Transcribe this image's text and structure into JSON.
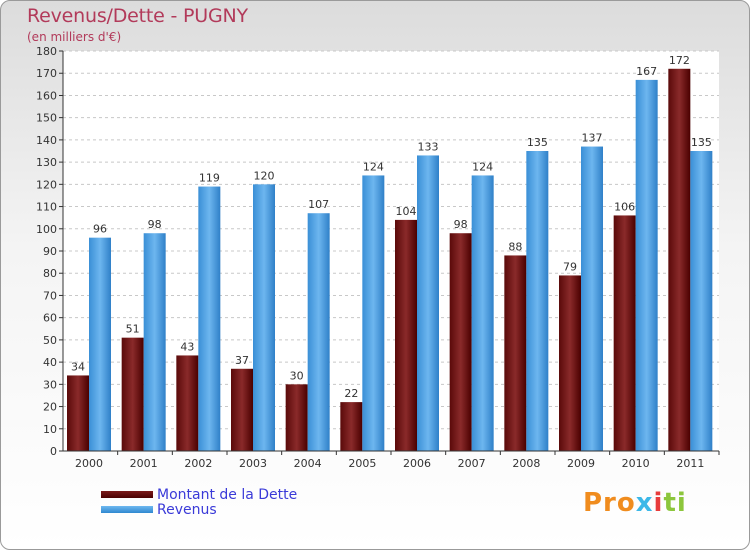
{
  "header": {
    "title": "Revenus/Dette - PUGNY",
    "subtitle": "(en milliers d'€)"
  },
  "legend": {
    "dette_label": "Montant de la Dette",
    "revenus_label": "Revenus"
  },
  "logo": {
    "text": "Proxiti",
    "parts": [
      "Pro",
      "x",
      "i",
      "ti"
    ]
  },
  "colors": {
    "dette": "#6e1414",
    "revenus": "#4aa3e6",
    "title": "#b23a5a",
    "legend_text": "#3a3ad8"
  },
  "chart_data": {
    "type": "bar",
    "title": "Revenus/Dette - PUGNY",
    "ylabel": "(en milliers d'€)",
    "xlabel": "",
    "ylim": [
      0,
      180
    ],
    "ytick_step": 10,
    "grid": true,
    "legend_position": "bottom-left",
    "categories": [
      "2000",
      "2001",
      "2002",
      "2003",
      "2004",
      "2005",
      "2006",
      "2007",
      "2008",
      "2009",
      "2010",
      "2011"
    ],
    "series": [
      {
        "name": "Montant de la Dette",
        "values": [
          34,
          51,
          43,
          37,
          30,
          22,
          104,
          98,
          88,
          79,
          106,
          172
        ]
      },
      {
        "name": "Revenus",
        "values": [
          96,
          98,
          119,
          120,
          107,
          124,
          133,
          124,
          135,
          137,
          167,
          135
        ]
      }
    ]
  }
}
